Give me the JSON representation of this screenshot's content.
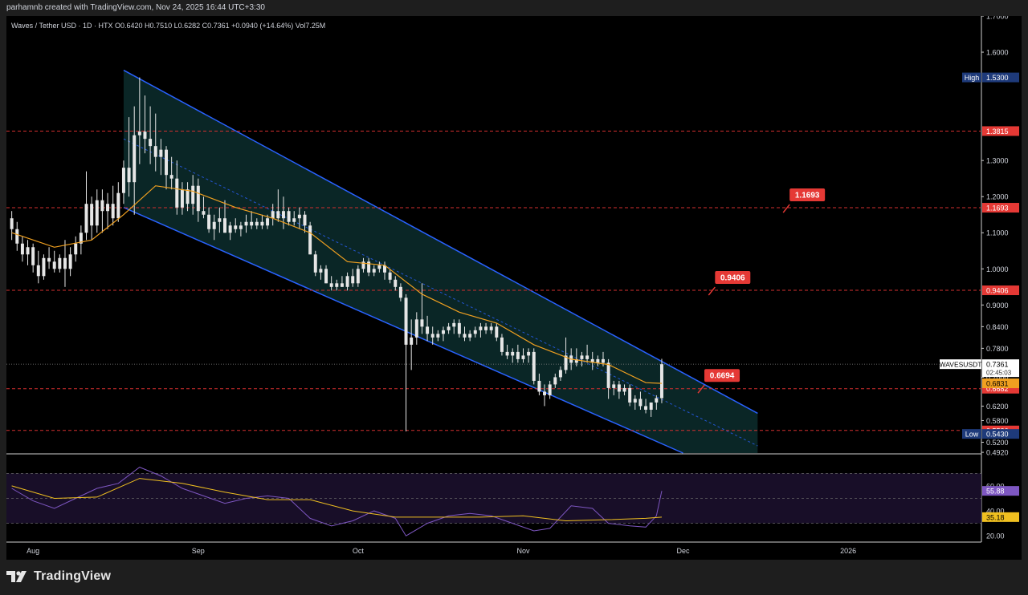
{
  "header": {
    "credit": "parhamnb created with TradingView.com, Nov 24, 2025 16:44 UTC+3:30",
    "legend": "Waves / Tether USD · 1D · HTX  O0.6420  H0.7510  L0.6282  C0.7361  +0.0940 (+14.64%)  Vol7.25M"
  },
  "branding": {
    "name": "TradingView"
  },
  "colors": {
    "background": "#000000",
    "channel_border": "#2962ff",
    "channel_fill": "#0b2a2a",
    "ma": "#f0a020",
    "level_line": "#d32f2f",
    "level_badge": "#e53935",
    "rsi_line": "#7e57c2",
    "rsi_ma": "#f0c020",
    "candle_up": "#e6e6e6",
    "candle_down": "#e6e6e6"
  },
  "chart_data": {
    "type": "candlestick",
    "symbol": "WAVESUSDT",
    "timeframe": "1D",
    "x": {
      "start": "2025-07-27",
      "end": "2026-01-26",
      "tick_labels": [
        {
          "date": "2025-08-01",
          "label": "Aug"
        },
        {
          "date": "2025-09-01",
          "label": "Sep"
        },
        {
          "date": "2025-10-01",
          "label": "Oct"
        },
        {
          "date": "2025-11-01",
          "label": "Nov"
        },
        {
          "date": "2025-12-01",
          "label": "Dec"
        },
        {
          "date": "2026-01-01",
          "label": "2026"
        }
      ]
    },
    "price_axis": {
      "ylim": [
        0.49,
        1.7
      ],
      "ticks": [
        {
          "v": 1.7,
          "label": "1.7000"
        },
        {
          "v": 1.6,
          "label": "1.6000"
        },
        {
          "v": 1.3,
          "label": "1.3000"
        },
        {
          "v": 1.2,
          "label": "1.2000"
        },
        {
          "v": 1.1,
          "label": "1.1000"
        },
        {
          "v": 1.0,
          "label": "1.0000"
        },
        {
          "v": 0.9,
          "label": "0.9000"
        },
        {
          "v": 0.84,
          "label": "0.8400"
        },
        {
          "v": 0.78,
          "label": "0.7800"
        },
        {
          "v": 0.7,
          "label": "0.7000"
        },
        {
          "v": 0.62,
          "label": "0.6200"
        },
        {
          "v": 0.58,
          "label": "0.5800"
        },
        {
          "v": 0.52,
          "label": "0.5200"
        },
        {
          "v": 0.492,
          "label": "0.4920"
        }
      ]
    },
    "ohlc": [
      [
        "2025-07-28",
        1.14,
        1.16,
        1.08,
        1.11
      ],
      [
        "2025-07-29",
        1.11,
        1.13,
        1.05,
        1.07
      ],
      [
        "2025-07-30",
        1.07,
        1.09,
        1.02,
        1.04
      ],
      [
        "2025-07-31",
        1.04,
        1.08,
        1.01,
        1.06
      ],
      [
        "2025-08-01",
        1.06,
        1.07,
        0.99,
        1.01
      ],
      [
        "2025-08-02",
        1.01,
        1.05,
        0.96,
        0.98
      ],
      [
        "2025-08-03",
        0.98,
        1.04,
        0.97,
        1.03
      ],
      [
        "2025-08-04",
        1.03,
        1.06,
        1.0,
        1.02
      ],
      [
        "2025-08-05",
        1.02,
        1.05,
        0.99,
        1.0
      ],
      [
        "2025-08-06",
        1.0,
        1.04,
        0.99,
        1.03
      ],
      [
        "2025-08-07",
        1.03,
        1.08,
        0.95,
        1.0
      ],
      [
        "2025-08-08",
        1.0,
        1.06,
        0.98,
        1.04
      ],
      [
        "2025-08-09",
        1.04,
        1.09,
        1.02,
        1.07
      ],
      [
        "2025-08-10",
        1.07,
        1.12,
        1.04,
        1.1
      ],
      [
        "2025-08-11",
        1.1,
        1.27,
        1.08,
        1.18
      ],
      [
        "2025-08-12",
        1.18,
        1.2,
        1.08,
        1.12
      ],
      [
        "2025-08-13",
        1.12,
        1.22,
        1.1,
        1.19
      ],
      [
        "2025-08-14",
        1.19,
        1.22,
        1.1,
        1.16
      ],
      [
        "2025-08-15",
        1.16,
        1.21,
        1.11,
        1.18
      ],
      [
        "2025-08-16",
        1.18,
        1.23,
        1.12,
        1.14
      ],
      [
        "2025-08-17",
        1.14,
        1.24,
        1.13,
        1.21
      ],
      [
        "2025-08-18",
        1.21,
        1.3,
        1.18,
        1.28
      ],
      [
        "2025-08-19",
        1.28,
        1.42,
        1.2,
        1.24
      ],
      [
        "2025-08-20",
        1.24,
        1.45,
        1.15,
        1.37
      ],
      [
        "2025-08-21",
        1.37,
        1.53,
        1.29,
        1.38
      ],
      [
        "2025-08-22",
        1.38,
        1.48,
        1.32,
        1.36
      ],
      [
        "2025-08-23",
        1.36,
        1.45,
        1.29,
        1.34
      ],
      [
        "2025-08-24",
        1.34,
        1.43,
        1.27,
        1.31
      ],
      [
        "2025-08-25",
        1.31,
        1.36,
        1.26,
        1.33
      ],
      [
        "2025-08-26",
        1.33,
        1.34,
        1.22,
        1.26
      ],
      [
        "2025-08-27",
        1.26,
        1.31,
        1.22,
        1.25
      ],
      [
        "2025-08-28",
        1.25,
        1.3,
        1.15,
        1.17
      ],
      [
        "2025-08-29",
        1.17,
        1.24,
        1.15,
        1.22
      ],
      [
        "2025-08-30",
        1.22,
        1.24,
        1.16,
        1.18
      ],
      [
        "2025-08-31",
        1.18,
        1.26,
        1.15,
        1.23
      ],
      [
        "2025-09-01",
        1.23,
        1.25,
        1.13,
        1.16
      ],
      [
        "2025-09-02",
        1.16,
        1.2,
        1.14,
        1.15
      ],
      [
        "2025-09-03",
        1.15,
        1.17,
        1.1,
        1.11
      ],
      [
        "2025-09-04",
        1.11,
        1.15,
        1.08,
        1.13
      ],
      [
        "2025-09-05",
        1.13,
        1.17,
        1.1,
        1.14
      ],
      [
        "2025-09-06",
        1.14,
        1.19,
        1.1,
        1.1
      ],
      [
        "2025-09-07",
        1.1,
        1.13,
        1.08,
        1.12
      ],
      [
        "2025-09-08",
        1.12,
        1.14,
        1.1,
        1.11
      ],
      [
        "2025-09-09",
        1.11,
        1.13,
        1.09,
        1.12
      ],
      [
        "2025-09-10",
        1.12,
        1.15,
        1.1,
        1.13
      ],
      [
        "2025-09-11",
        1.13,
        1.16,
        1.11,
        1.12
      ],
      [
        "2025-09-12",
        1.12,
        1.14,
        1.11,
        1.13
      ],
      [
        "2025-09-13",
        1.13,
        1.15,
        1.11,
        1.12
      ],
      [
        "2025-09-14",
        1.12,
        1.15,
        1.11,
        1.14
      ],
      [
        "2025-09-15",
        1.14,
        1.18,
        1.12,
        1.16
      ],
      [
        "2025-09-16",
        1.16,
        1.22,
        1.13,
        1.14
      ],
      [
        "2025-09-17",
        1.14,
        1.2,
        1.11,
        1.16
      ],
      [
        "2025-09-18",
        1.16,
        1.17,
        1.12,
        1.13
      ],
      [
        "2025-09-19",
        1.13,
        1.16,
        1.12,
        1.14
      ],
      [
        "2025-09-20",
        1.14,
        1.17,
        1.11,
        1.15
      ],
      [
        "2025-09-21",
        1.15,
        1.16,
        1.1,
        1.12
      ],
      [
        "2025-09-22",
        1.12,
        1.13,
        1.04,
        1.04
      ],
      [
        "2025-09-23",
        1.04,
        1.05,
        0.98,
        0.99
      ],
      [
        "2025-09-24",
        0.99,
        1.01,
        0.97,
        1.0
      ],
      [
        "2025-09-25",
        1.0,
        1.01,
        0.96,
        0.96
      ],
      [
        "2025-09-26",
        0.96,
        0.98,
        0.94,
        0.95
      ],
      [
        "2025-09-27",
        0.95,
        0.97,
        0.94,
        0.96
      ],
      [
        "2025-09-28",
        0.96,
        0.98,
        0.95,
        0.95
      ],
      [
        "2025-09-29",
        0.95,
        0.99,
        0.94,
        0.98
      ],
      [
        "2025-09-30",
        0.98,
        1.0,
        0.95,
        0.96
      ],
      [
        "2025-10-01",
        0.96,
        1.01,
        0.95,
        1.0
      ],
      [
        "2025-10-02",
        1.0,
        1.03,
        0.99,
        1.02
      ],
      [
        "2025-10-03",
        1.02,
        1.03,
        0.98,
        0.99
      ],
      [
        "2025-10-04",
        0.99,
        1.01,
        0.98,
        1.0
      ],
      [
        "2025-10-05",
        1.0,
        1.02,
        0.99,
        1.01
      ],
      [
        "2025-10-06",
        1.01,
        1.02,
        0.97,
        0.99
      ],
      [
        "2025-10-07",
        0.99,
        1.0,
        0.96,
        0.97
      ],
      [
        "2025-10-08",
        0.97,
        0.98,
        0.94,
        0.95
      ],
      [
        "2025-10-09",
        0.95,
        0.96,
        0.91,
        0.92
      ],
      [
        "2025-10-10",
        0.92,
        0.93,
        0.55,
        0.79
      ],
      [
        "2025-10-11",
        0.79,
        0.86,
        0.72,
        0.81
      ],
      [
        "2025-10-12",
        0.81,
        0.88,
        0.79,
        0.86
      ],
      [
        "2025-10-13",
        0.86,
        0.96,
        0.82,
        0.84
      ],
      [
        "2025-10-14",
        0.84,
        0.87,
        0.8,
        0.82
      ],
      [
        "2025-10-15",
        0.82,
        0.84,
        0.79,
        0.81
      ],
      [
        "2025-10-16",
        0.81,
        0.83,
        0.8,
        0.82
      ],
      [
        "2025-10-17",
        0.82,
        0.84,
        0.8,
        0.83
      ],
      [
        "2025-10-18",
        0.83,
        0.85,
        0.82,
        0.84
      ],
      [
        "2025-10-19",
        0.84,
        0.86,
        0.82,
        0.85
      ],
      [
        "2025-10-20",
        0.85,
        0.86,
        0.81,
        0.82
      ],
      [
        "2025-10-21",
        0.82,
        0.84,
        0.8,
        0.81
      ],
      [
        "2025-10-22",
        0.81,
        0.83,
        0.8,
        0.82
      ],
      [
        "2025-10-23",
        0.82,
        0.84,
        0.81,
        0.83
      ],
      [
        "2025-10-24",
        0.83,
        0.85,
        0.81,
        0.84
      ],
      [
        "2025-10-25",
        0.84,
        0.85,
        0.82,
        0.83
      ],
      [
        "2025-10-26",
        0.83,
        0.85,
        0.82,
        0.84
      ],
      [
        "2025-10-27",
        0.84,
        0.85,
        0.8,
        0.81
      ],
      [
        "2025-10-28",
        0.81,
        0.82,
        0.76,
        0.77
      ],
      [
        "2025-10-29",
        0.77,
        0.79,
        0.75,
        0.76
      ],
      [
        "2025-10-30",
        0.76,
        0.78,
        0.74,
        0.77
      ],
      [
        "2025-10-31",
        0.77,
        0.79,
        0.74,
        0.75
      ],
      [
        "2025-11-01",
        0.75,
        0.78,
        0.74,
        0.76
      ],
      [
        "2025-11-02",
        0.76,
        0.78,
        0.74,
        0.77
      ],
      [
        "2025-11-03",
        0.77,
        0.78,
        0.68,
        0.69
      ],
      [
        "2025-11-04",
        0.69,
        0.71,
        0.65,
        0.66
      ],
      [
        "2025-11-05",
        0.66,
        0.68,
        0.62,
        0.65
      ],
      [
        "2025-11-06",
        0.65,
        0.69,
        0.64,
        0.68
      ],
      [
        "2025-11-07",
        0.68,
        0.71,
        0.67,
        0.7
      ],
      [
        "2025-11-08",
        0.7,
        0.73,
        0.69,
        0.72
      ],
      [
        "2025-11-09",
        0.72,
        0.81,
        0.71,
        0.76
      ],
      [
        "2025-11-10",
        0.76,
        0.78,
        0.72,
        0.74
      ],
      [
        "2025-11-11",
        0.74,
        0.78,
        0.73,
        0.75
      ],
      [
        "2025-11-12",
        0.75,
        0.77,
        0.73,
        0.76
      ],
      [
        "2025-11-13",
        0.76,
        0.79,
        0.74,
        0.75
      ],
      [
        "2025-11-14",
        0.75,
        0.77,
        0.72,
        0.74
      ],
      [
        "2025-11-15",
        0.74,
        0.76,
        0.73,
        0.75
      ],
      [
        "2025-11-16",
        0.75,
        0.77,
        0.73,
        0.74
      ],
      [
        "2025-11-17",
        0.74,
        0.75,
        0.64,
        0.67
      ],
      [
        "2025-11-18",
        0.67,
        0.69,
        0.65,
        0.68
      ],
      [
        "2025-11-19",
        0.68,
        0.69,
        0.64,
        0.66
      ],
      [
        "2025-11-20",
        0.66,
        0.68,
        0.65,
        0.67
      ],
      [
        "2025-11-21",
        0.67,
        0.68,
        0.62,
        0.63
      ],
      [
        "2025-11-22",
        0.63,
        0.65,
        0.61,
        0.64
      ],
      [
        "2025-11-23",
        0.64,
        0.66,
        0.61,
        0.62
      ],
      [
        "2025-11-24",
        0.62,
        0.64,
        0.6,
        0.61
      ],
      [
        "2025-11-25",
        0.61,
        0.63,
        0.59,
        0.63
      ],
      [
        "2025-11-26",
        0.63,
        0.65,
        0.61,
        0.642
      ],
      [
        "2025-11-27",
        0.642,
        0.751,
        0.628,
        0.736
      ]
    ],
    "ma": [
      [
        "2025-07-28",
        1.1
      ],
      [
        "2025-08-05",
        1.06
      ],
      [
        "2025-08-12",
        1.08
      ],
      [
        "2025-08-18",
        1.15
      ],
      [
        "2025-08-24",
        1.23
      ],
      [
        "2025-08-31",
        1.215
      ],
      [
        "2025-09-08",
        1.17
      ],
      [
        "2025-09-15",
        1.14
      ],
      [
        "2025-09-22",
        1.1
      ],
      [
        "2025-09-29",
        1.02
      ],
      [
        "2025-10-06",
        1.01
      ],
      [
        "2025-10-13",
        0.93
      ],
      [
        "2025-10-20",
        0.88
      ],
      [
        "2025-10-27",
        0.85
      ],
      [
        "2025-11-03",
        0.79
      ],
      [
        "2025-11-10",
        0.75
      ],
      [
        "2025-11-17",
        0.735
      ],
      [
        "2025-11-24",
        0.685
      ],
      [
        "2025-11-27",
        0.683
      ]
    ],
    "channel": {
      "upper": [
        [
          "2025-08-18",
          1.55
        ],
        [
          "2025-12-15",
          0.6
        ]
      ],
      "lower": [
        [
          "2025-08-18",
          1.17
        ],
        [
          "2025-12-01",
          0.49
        ]
      ],
      "mid": [
        [
          "2025-08-18",
          1.36
        ],
        [
          "2025-12-15",
          0.51
        ]
      ],
      "box_right": "2025-12-15"
    },
    "levels": [
      {
        "value": 1.3815,
        "label": "1.3815"
      },
      {
        "value": 1.1693,
        "label": "1.1693"
      },
      {
        "value": 0.9406,
        "label": "0.9406"
      },
      {
        "value": 0.6682,
        "label": "0.6682"
      },
      {
        "value": 0.5526,
        "label": "0.5526"
      }
    ],
    "callouts": [
      {
        "date": "2025-12-21",
        "value": 1.1693,
        "label": "1.1693"
      },
      {
        "date": "2025-12-07",
        "value": 0.9406,
        "label": "0.9406"
      },
      {
        "date": "2025-12-05",
        "value": 0.6694,
        "label": "0.6694"
      }
    ],
    "axis_labels": {
      "high": {
        "tag": "High",
        "value": 1.53,
        "label": "1.5300"
      },
      "low": {
        "tag": "Low",
        "value": 0.543,
        "label": "0.5430"
      },
      "last": {
        "tag": "WAVESUSDT",
        "value": 0.7361,
        "label": "0.7361",
        "countdown": "02:45:03"
      },
      "ma_value": {
        "value": 0.6831,
        "label": "0.6831"
      }
    },
    "rsi": {
      "ylim": [
        15,
        85
      ],
      "ticks": [
        {
          "v": 60,
          "label": "60.00"
        },
        {
          "v": 40,
          "label": "40.00"
        },
        {
          "v": 20,
          "label": "20.00"
        }
      ],
      "bands": [
        30,
        50,
        70
      ],
      "value_label": "55.88",
      "ma_label": "35.18",
      "values": [
        [
          "2025-07-28",
          58
        ],
        [
          "2025-08-01",
          48
        ],
        [
          "2025-08-05",
          42
        ],
        [
          "2025-08-09",
          50
        ],
        [
          "2025-08-13",
          58
        ],
        [
          "2025-08-17",
          62
        ],
        [
          "2025-08-21",
          75
        ],
        [
          "2025-08-25",
          68
        ],
        [
          "2025-08-29",
          58
        ],
        [
          "2025-09-02",
          52
        ],
        [
          "2025-09-06",
          46
        ],
        [
          "2025-09-10",
          50
        ],
        [
          "2025-09-14",
          52
        ],
        [
          "2025-09-18",
          50
        ],
        [
          "2025-09-22",
          34
        ],
        [
          "2025-09-26",
          28
        ],
        [
          "2025-09-30",
          32
        ],
        [
          "2025-10-04",
          40
        ],
        [
          "2025-10-08",
          34
        ],
        [
          "2025-10-10",
          20
        ],
        [
          "2025-10-14",
          30
        ],
        [
          "2025-10-18",
          36
        ],
        [
          "2025-10-22",
          38
        ],
        [
          "2025-10-26",
          36
        ],
        [
          "2025-10-30",
          30
        ],
        [
          "2025-11-03",
          24
        ],
        [
          "2025-11-06",
          26
        ],
        [
          "2025-11-10",
          44
        ],
        [
          "2025-11-14",
          42
        ],
        [
          "2025-11-17",
          30
        ],
        [
          "2025-11-21",
          28
        ],
        [
          "2025-11-24",
          27
        ],
        [
          "2025-11-26",
          36
        ],
        [
          "2025-11-27",
          56
        ]
      ],
      "ma_values": [
        [
          "2025-07-28",
          60
        ],
        [
          "2025-08-05",
          50
        ],
        [
          "2025-08-13",
          51
        ],
        [
          "2025-08-21",
          66
        ],
        [
          "2025-08-29",
          62
        ],
        [
          "2025-09-06",
          55
        ],
        [
          "2025-09-14",
          49
        ],
        [
          "2025-09-22",
          49
        ],
        [
          "2025-09-30",
          40
        ],
        [
          "2025-10-08",
          35
        ],
        [
          "2025-10-16",
          35
        ],
        [
          "2025-10-24",
          35
        ],
        [
          "2025-11-01",
          36
        ],
        [
          "2025-11-09",
          32
        ],
        [
          "2025-11-17",
          33
        ],
        [
          "2025-11-24",
          34
        ],
        [
          "2025-11-27",
          35
        ]
      ]
    }
  }
}
